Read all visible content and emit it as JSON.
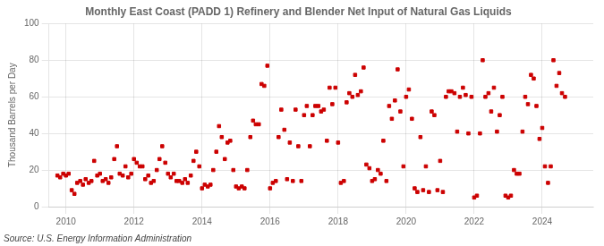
{
  "chart_data": {
    "type": "scatter",
    "title": "Monthly East Coast (PADD 1) Refinery and Blender Net Input of Natural Gas Liquids",
    "ylabel": "Thousand Barrels per Day",
    "source": "Source: U.S. Energy Information Administration",
    "color": "#cc0000",
    "marker": "square",
    "grid": true,
    "xlim": [
      2009.5,
      2025.5
    ],
    "xticks": [
      2010,
      2012,
      2014,
      2016,
      2018,
      2020,
      2022,
      2024
    ],
    "ylim": [
      0,
      100
    ],
    "yticks": [
      0,
      20,
      40,
      60,
      80,
      100
    ],
    "x": [
      2009.75,
      2009.83,
      2009.92,
      2010.0,
      2010.08,
      2010.17,
      2010.25,
      2010.33,
      2010.42,
      2010.5,
      2010.58,
      2010.67,
      2010.75,
      2010.83,
      2010.92,
      2011.0,
      2011.08,
      2011.17,
      2011.25,
      2011.33,
      2011.42,
      2011.5,
      2011.58,
      2011.67,
      2011.75,
      2011.83,
      2011.92,
      2012.0,
      2012.08,
      2012.17,
      2012.25,
      2012.33,
      2012.42,
      2012.5,
      2012.58,
      2012.67,
      2012.75,
      2012.83,
      2012.92,
      2013.0,
      2013.08,
      2013.17,
      2013.25,
      2013.33,
      2013.42,
      2013.5,
      2013.58,
      2013.67,
      2013.75,
      2013.83,
      2013.92,
      2014.0,
      2014.08,
      2014.17,
      2014.25,
      2014.33,
      2014.42,
      2014.5,
      2014.58,
      2014.67,
      2014.75,
      2014.83,
      2014.92,
      2015.0,
      2015.08,
      2015.17,
      2015.25,
      2015.33,
      2015.42,
      2015.5,
      2015.58,
      2015.67,
      2015.75,
      2015.83,
      2015.92,
      2016.0,
      2016.08,
      2016.17,
      2016.25,
      2016.33,
      2016.42,
      2016.5,
      2016.58,
      2016.67,
      2016.75,
      2016.83,
      2016.92,
      2017.0,
      2017.08,
      2017.17,
      2017.25,
      2017.33,
      2017.42,
      2017.5,
      2017.58,
      2017.67,
      2017.75,
      2017.83,
      2017.92,
      2018.0,
      2018.08,
      2018.17,
      2018.25,
      2018.33,
      2018.42,
      2018.5,
      2018.58,
      2018.67,
      2018.75,
      2018.83,
      2018.92,
      2019.0,
      2019.08,
      2019.17,
      2019.25,
      2019.33,
      2019.42,
      2019.5,
      2019.58,
      2019.67,
      2019.75,
      2019.83,
      2019.92,
      2020.0,
      2020.08,
      2020.17,
      2020.25,
      2020.33,
      2020.42,
      2020.5,
      2020.58,
      2020.67,
      2020.75,
      2020.83,
      2020.92,
      2021.0,
      2021.08,
      2021.17,
      2021.25,
      2021.33,
      2021.42,
      2021.5,
      2021.58,
      2021.67,
      2021.75,
      2021.83,
      2021.92,
      2022.0,
      2022.08,
      2022.17,
      2022.25,
      2022.33,
      2022.42,
      2022.5,
      2022.58,
      2022.67,
      2022.75,
      2022.83,
      2022.92,
      2023.0,
      2023.08,
      2023.17,
      2023.25,
      2023.33,
      2023.42,
      2023.5,
      2023.58,
      2023.67,
      2023.75,
      2023.83,
      2023.92,
      2024.0,
      2024.08,
      2024.17,
      2024.25,
      2024.33,
      2024.42,
      2024.5,
      2024.58,
      2024.67
    ],
    "values": [
      17,
      16,
      18,
      17,
      18,
      9,
      7,
      13,
      14,
      12,
      15,
      13,
      14,
      25,
      17,
      18,
      14,
      15,
      13,
      16,
      26,
      33,
      18,
      17,
      22,
      16,
      18,
      26,
      24,
      22,
      22,
      15,
      17,
      13,
      14,
      20,
      26,
      33,
      24,
      18,
      16,
      18,
      14,
      14,
      13,
      15,
      13,
      17,
      25,
      30,
      22,
      10,
      12,
      11,
      12,
      20,
      30,
      44,
      38,
      26,
      35,
      36,
      20,
      11,
      10,
      11,
      10,
      20,
      38,
      47,
      45,
      45,
      67,
      66,
      77,
      10,
      13,
      14,
      38,
      53,
      42,
      15,
      35,
      14,
      53,
      33,
      14,
      50,
      55,
      33,
      50,
      55,
      55,
      52,
      53,
      36,
      65,
      56,
      65,
      35,
      13,
      14,
      57,
      62,
      60,
      72,
      61,
      63,
      76,
      23,
      21,
      14,
      15,
      20,
      18,
      36,
      14,
      55,
      48,
      58,
      75,
      52,
      22,
      60,
      64,
      48,
      10,
      8,
      38,
      9,
      22,
      8,
      52,
      50,
      9,
      25,
      8,
      60,
      63,
      63,
      62,
      41,
      60,
      65,
      61,
      40,
      60,
      5,
      6,
      40,
      80,
      60,
      62,
      52,
      65,
      41,
      50,
      60,
      6,
      5,
      6,
      20,
      18,
      18,
      41,
      60,
      56,
      72,
      70,
      55,
      37,
      43,
      22,
      13,
      22,
      80,
      66,
      73,
      62,
      60
    ]
  }
}
